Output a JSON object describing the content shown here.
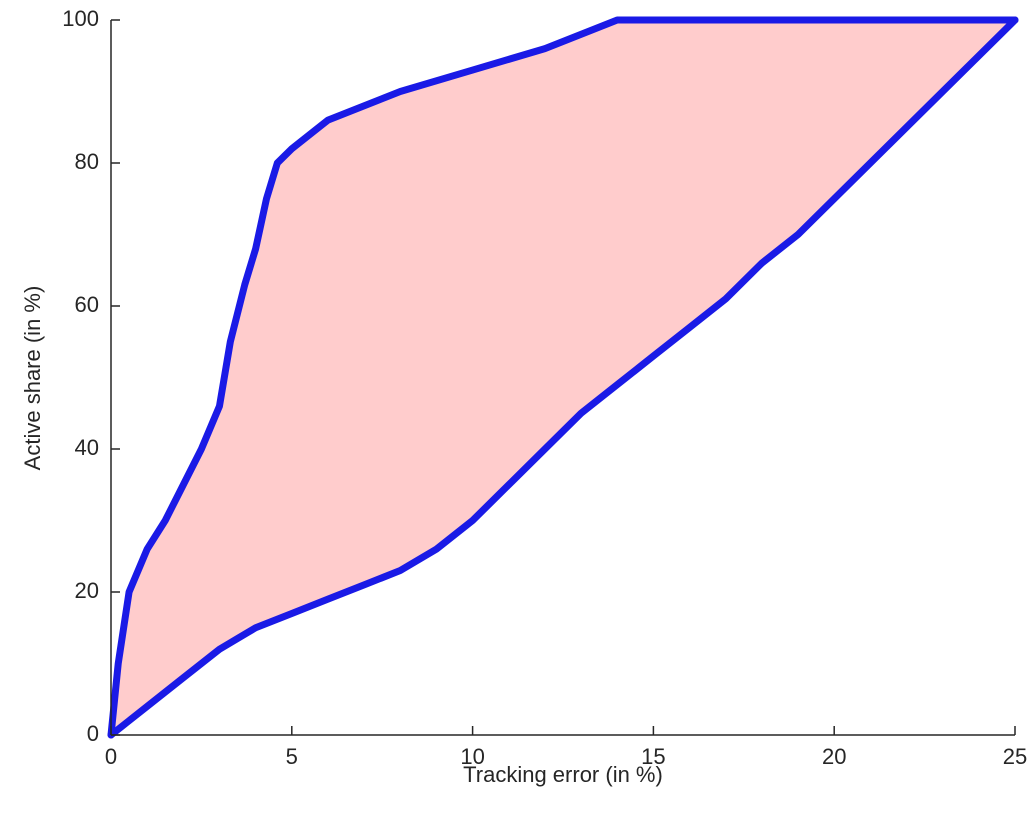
{
  "chart_data": {
    "type": "area",
    "x_label": "Tracking error (in %)",
    "y_label": "Active share (in %)",
    "fill_color": "#ffcccc",
    "series": [
      {
        "color": "#1a1ae6",
        "x": [
          0,
          0.2,
          0.5,
          1,
          1.5,
          2,
          2.5,
          3,
          3.3,
          3.7,
          4,
          4.3,
          4.6,
          5,
          6,
          8,
          10,
          12,
          14,
          25
        ],
        "values": [
          0,
          10,
          20,
          26,
          30,
          35,
          40,
          46,
          55,
          63,
          68,
          75,
          80,
          82,
          86,
          90,
          93,
          96,
          100,
          100
        ]
      },
      {
        "color": "#1a1ae6",
        "x": [
          0,
          1,
          2,
          3,
          4,
          5,
          6,
          7,
          8,
          9,
          10,
          11,
          12,
          13,
          14,
          15,
          16,
          17,
          18,
          19,
          20,
          21,
          22,
          23,
          24,
          25
        ],
        "values": [
          0,
          4,
          8,
          12,
          15,
          17,
          19,
          21,
          23,
          26,
          30,
          35,
          40,
          45,
          49,
          53,
          57,
          61,
          66,
          70,
          75,
          80,
          85,
          90,
          95,
          100
        ]
      }
    ],
    "xlim": [
      0,
      25
    ],
    "xticks": [
      0,
      5,
      10,
      15,
      20,
      25
    ],
    "ylim": [
      0,
      100
    ],
    "yticks": [
      0,
      20,
      40,
      60,
      80,
      100
    ]
  }
}
